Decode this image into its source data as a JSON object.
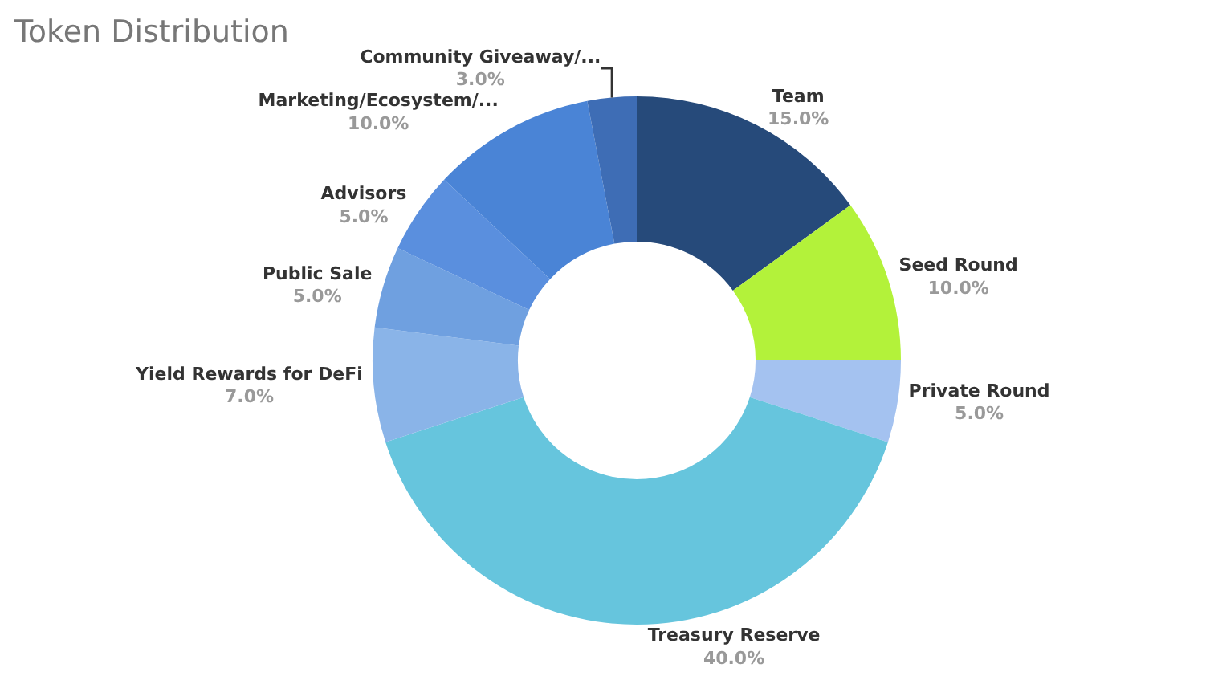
{
  "chart_data": {
    "type": "donut",
    "title": "Token Distribution",
    "categories": [
      "Team",
      "Seed Round",
      "Private Round",
      "Treasury Reserve",
      "Yield Rewards for DeFi",
      "Public Sale",
      "Advisors",
      "Marketing/Ecosystem/...",
      "Community Giveaway/..."
    ],
    "values": [
      15,
      10,
      5,
      40,
      7,
      5,
      5,
      10,
      3
    ],
    "value_labels": [
      "15.0%",
      "10.0%",
      "5.0%",
      "40.0%",
      "7.0%",
      "5.0%",
      "5.0%",
      "10.0%",
      "3.0%"
    ],
    "colors": [
      "#264a7a",
      "#b3f23a",
      "#a4c2f0",
      "#66c5dd",
      "#8ab4e8",
      "#6fa0e0",
      "#5a8fde",
      "#4a84d6",
      "#3e6db5"
    ],
    "legend": false
  }
}
